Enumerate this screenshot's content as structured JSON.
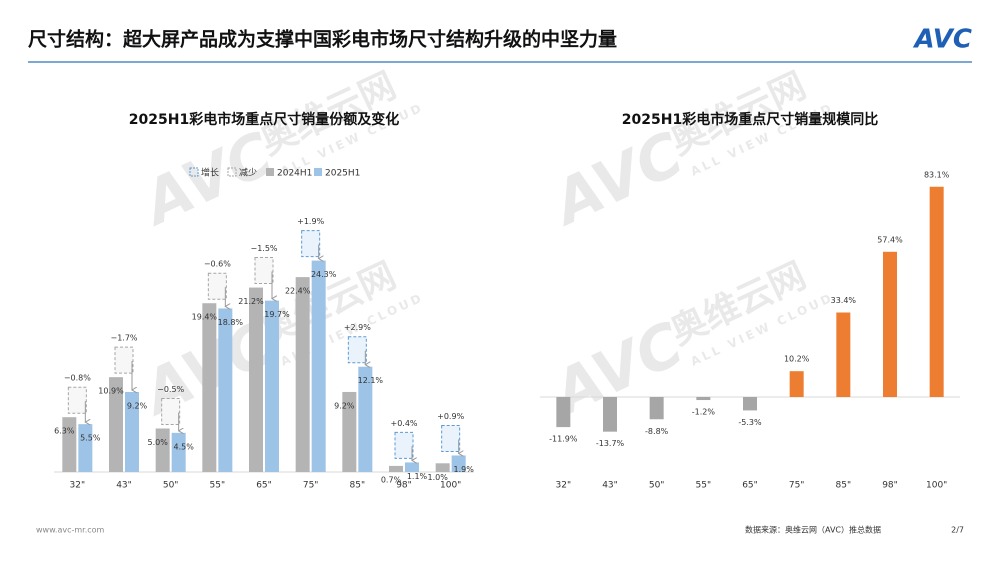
{
  "header": {
    "title": "尺寸结构：超大屏产品成为支撑中国彩电市场尺寸结构升级的中坚力量",
    "logo": "AVC"
  },
  "watermark": {
    "logo": "AVC",
    "name": "奥维云网",
    "sub": "ALL VIEW CLOUD"
  },
  "chart_data": [
    {
      "type": "grouped_bar_change",
      "title": "2025H1彩电市场重点尺寸销量份额及变化",
      "categories": [
        "32\"",
        "43\"",
        "50\"",
        "55\"",
        "65\"",
        "75\"",
        "85\"",
        "98\"",
        "100\""
      ],
      "legend_changes": [
        {
          "name": "增长",
          "color": "#5b9bd5"
        },
        {
          "name": "减少",
          "color": "#a6a6a6"
        }
      ],
      "series": [
        {
          "name": "2024H1",
          "color": "#b4b4b4",
          "values": [
            6.3,
            10.9,
            5.0,
            19.4,
            21.2,
            22.4,
            9.2,
            0.7,
            1.0
          ],
          "value_labels": [
            "6.3%",
            "10.9%",
            "5.0%",
            "19.4%",
            "21.2%",
            "22.4%",
            "9.2%",
            "0.7%",
            "1.0%"
          ]
        },
        {
          "name": "2025H1",
          "color": "#9dc3e6",
          "values": [
            5.5,
            9.2,
            4.5,
            18.8,
            19.7,
            24.3,
            12.1,
            1.1,
            1.9
          ],
          "value_labels": [
            "5.5%",
            "9.2%",
            "4.5%",
            "18.8%",
            "19.7%",
            "24.3%",
            "12.1%",
            "1.1%",
            "1.9%"
          ]
        }
      ],
      "changes": {
        "values": [
          -0.8,
          -1.7,
          -0.5,
          -0.6,
          -1.5,
          1.9,
          2.9,
          0.4,
          0.9
        ],
        "value_labels": [
          "−0.8%",
          "−1.7%",
          "−0.5%",
          "−0.6%",
          "−1.5%",
          "+1.9%",
          "+2.9%",
          "+0.4%",
          "+0.9%"
        ]
      }
    },
    {
      "type": "bar",
      "title": "2025H1彩电市场重点尺寸销量规模同比",
      "categories": [
        "32\"",
        "43\"",
        "50\"",
        "55\"",
        "65\"",
        "75\"",
        "85\"",
        "98\"",
        "100\""
      ],
      "values": [
        -11.9,
        -13.7,
        -8.8,
        -1.2,
        -5.3,
        10.2,
        33.4,
        57.4,
        83.1
      ],
      "value_labels": [
        "-11.9%",
        "-13.7%",
        "-8.8%",
        "-1.2%",
        "-5.3%",
        "10.2%",
        "33.4%",
        "57.4%",
        "83.1%"
      ],
      "colors": [
        "#a6a6a6",
        "#a6a6a6",
        "#a6a6a6",
        "#a6a6a6",
        "#a6a6a6",
        "#ed7d31",
        "#ed7d31",
        "#ed7d31",
        "#ed7d31"
      ]
    }
  ],
  "footer": {
    "site": "www.avc-mr.com",
    "source": "数据来源：奥维云网（AVC）推总数据",
    "page": "2/7"
  }
}
